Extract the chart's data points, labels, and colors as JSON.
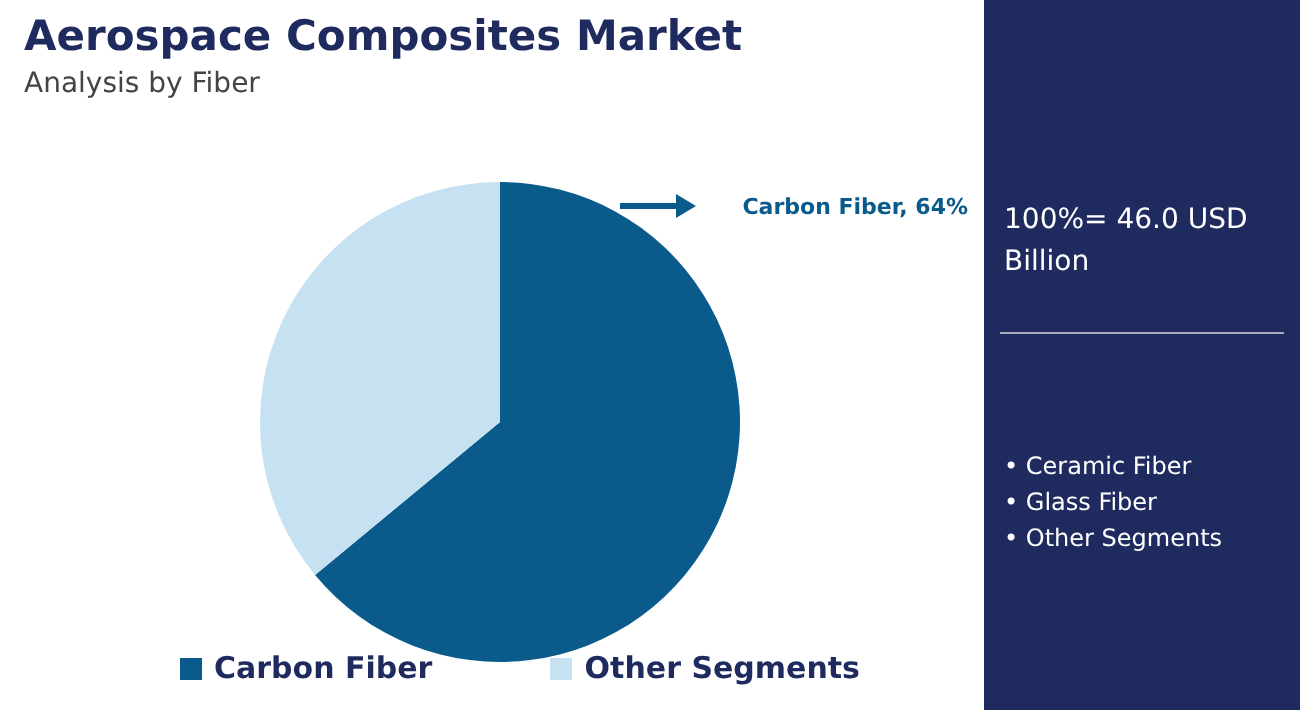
{
  "chart_data": {
    "type": "pie",
    "title": "Aerospace Composites Market",
    "subtitle": "Analysis by Fiber",
    "categories": [
      "Carbon Fiber",
      "Other Segments"
    ],
    "values": [
      64,
      36
    ],
    "colors": [
      "#0a5a8c",
      "#c6e1f2"
    ],
    "value_labels": [
      "Carbon Fiber, 64%",
      null
    ],
    "legend": "bottom",
    "annotations": [
      "100%= 46.0 USD Billion",
      "• Ceramic Fiber",
      "• Glass Fiber",
      "• Other Segments"
    ]
  }
}
